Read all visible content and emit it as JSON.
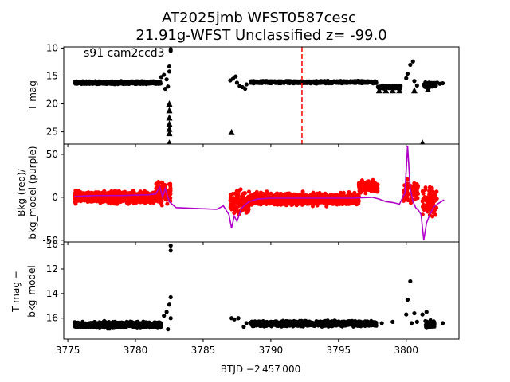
{
  "figure": {
    "title_line1": "AT2025jmb  WFST0587cesc",
    "title_line2": "21.91g-WFST Unclassified z= -99.0",
    "xlabel": "BTJD −2 457 000"
  },
  "chart_data": [
    {
      "type": "scatter",
      "panel": "top",
      "ylabel": "T mag",
      "annotation": "s91 cam2ccd3",
      "xlim": [
        3774.7,
        3803.9
      ],
      "ylim": [
        27.2,
        9.8
      ],
      "y_inverted": true,
      "xticks": [
        3775,
        3780,
        3785,
        3790,
        3795,
        3800
      ],
      "yticks": [
        10,
        15,
        20,
        25
      ],
      "dense_bands": [
        {
          "x_start": 3775.5,
          "x_end": 3781.9,
          "y_center": 16.2,
          "spread": 0.35,
          "count": 800
        },
        {
          "x_start": 3788.5,
          "x_end": 3797.8,
          "y_center": 16.1,
          "spread": 0.3,
          "count": 1100
        },
        {
          "x_start": 3797.9,
          "x_end": 3799.6,
          "y_center": 17.0,
          "spread": 0.4,
          "count": 160
        },
        {
          "x_start": 3801.3,
          "x_end": 3802.2,
          "y_center": 16.6,
          "spread": 0.6,
          "count": 90
        }
      ],
      "points": [
        {
          "x": 3781.9,
          "y": 15.2
        },
        {
          "x": 3782.1,
          "y": 14.8
        },
        {
          "x": 3782.2,
          "y": 17.3
        },
        {
          "x": 3782.3,
          "y": 15.6
        },
        {
          "x": 3782.4,
          "y": 16.9
        },
        {
          "x": 3782.5,
          "y": 14.2
        },
        {
          "x": 3782.6,
          "y": 10.2
        },
        {
          "x": 3782.6,
          "y": 10.5
        },
        {
          "x": 3782.5,
          "y": 13.3
        },
        {
          "x": 3787.0,
          "y": 15.8
        },
        {
          "x": 3787.2,
          "y": 15.5
        },
        {
          "x": 3787.4,
          "y": 15.1
        },
        {
          "x": 3787.5,
          "y": 16.2
        },
        {
          "x": 3787.7,
          "y": 16.8
        },
        {
          "x": 3787.9,
          "y": 17.0
        },
        {
          "x": 3788.1,
          "y": 17.3
        },
        {
          "x": 3788.2,
          "y": 16.5
        },
        {
          "x": 3800.0,
          "y": 15.4
        },
        {
          "x": 3800.1,
          "y": 14.6
        },
        {
          "x": 3800.3,
          "y": 13.0
        },
        {
          "x": 3800.5,
          "y": 12.4
        },
        {
          "x": 3800.6,
          "y": 15.9
        },
        {
          "x": 3800.8,
          "y": 16.7
        },
        {
          "x": 3802.3,
          "y": 16.2
        },
        {
          "x": 3802.5,
          "y": 16.4
        },
        {
          "x": 3802.7,
          "y": 16.3
        }
      ],
      "upper_limits": [
        {
          "x": 3782.5,
          "y": 20.0
        },
        {
          "x": 3782.5,
          "y": 21.2
        },
        {
          "x": 3782.5,
          "y": 22.5
        },
        {
          "x": 3782.5,
          "y": 23.6
        },
        {
          "x": 3782.5,
          "y": 24.5
        },
        {
          "x": 3782.5,
          "y": 25.3
        },
        {
          "x": 3782.5,
          "y": 27.0
        },
        {
          "x": 3787.1,
          "y": 25.1
        },
        {
          "x": 3801.2,
          "y": 27.0
        },
        {
          "x": 3798.0,
          "y": 17.6
        },
        {
          "x": 3798.5,
          "y": 17.6
        },
        {
          "x": 3799.0,
          "y": 17.6
        },
        {
          "x": 3799.5,
          "y": 17.6
        },
        {
          "x": 3800.6,
          "y": 17.6
        },
        {
          "x": 3801.6,
          "y": 17.4
        }
      ],
      "vline": {
        "x": 3792.3,
        "color": "#ff0000",
        "style": "dashed"
      },
      "color": "#000000"
    },
    {
      "type": "scatter",
      "panel": "middle",
      "ylabel_line1": "Bkg (red)/",
      "ylabel_line2": "bkg_model (purple)",
      "xlim": [
        3774.7,
        3803.9
      ],
      "ylim": [
        -52,
        62
      ],
      "xticks": [
        3775,
        3780,
        3785,
        3790,
        3795,
        3800
      ],
      "yticks": [
        -50,
        0,
        50
      ],
      "bkg_bands": [
        {
          "x_start": 3775.5,
          "x_end": 3781.5,
          "y_center": 0,
          "spread": 9,
          "count": 1000
        },
        {
          "x_start": 3788.5,
          "x_end": 3796.5,
          "y_center": -2,
          "spread": 9,
          "count": 1200
        },
        {
          "x_start": 3796.5,
          "x_end": 3797.9,
          "y_center": 12,
          "spread": 9,
          "count": 220
        },
        {
          "x_start": 3781.5,
          "x_end": 3782.6,
          "y_center": 5,
          "spread": 16,
          "count": 120
        },
        {
          "x_start": 3787.0,
          "x_end": 3788.4,
          "y_center": -5,
          "spread": 20,
          "count": 110
        },
        {
          "x_start": 3799.8,
          "x_end": 3800.9,
          "y_center": 5,
          "spread": 20,
          "count": 70
        },
        {
          "x_start": 3801.2,
          "x_end": 3802.3,
          "y_center": -5,
          "spread": 22,
          "count": 90
        }
      ],
      "bkg_model": {
        "x": [
          3775.5,
          3777.0,
          3779.0,
          3781.0,
          3781.5,
          3781.8,
          3782.0,
          3782.2,
          3782.5,
          3782.7,
          3783.0,
          3786.0,
          3786.5,
          3786.9,
          3787.1,
          3787.3,
          3787.5,
          3787.8,
          3788.0,
          3788.4,
          3789.0,
          3790.0,
          3792.0,
          3794.0,
          3796.0,
          3797.5,
          3798.0,
          3798.5,
          3799.0,
          3799.5,
          3799.9,
          3800.1,
          3800.3,
          3800.5,
          3800.7,
          3800.9,
          3801.1,
          3801.3,
          3801.5,
          3801.7,
          3802.0,
          3802.3,
          3802.8
        ],
        "y": [
          1,
          2,
          2,
          3,
          4,
          12,
          0,
          10,
          -5,
          -8,
          -12,
          -14,
          -10,
          -20,
          -36,
          -22,
          -28,
          -14,
          -10,
          -5,
          -2,
          -1,
          -1,
          -1,
          -1,
          0,
          -2,
          -5,
          -6,
          -8,
          5,
          60,
          10,
          -5,
          -12,
          -15,
          -20,
          -50,
          -30,
          -22,
          -12,
          -8,
          -3
        ],
        "color": "#b000c8"
      },
      "color": "#ff0000"
    },
    {
      "type": "scatter",
      "panel": "bottom",
      "ylabel_line1": "T mag −",
      "ylabel_line2": "bkg_model",
      "xlim": [
        3774.7,
        3803.9
      ],
      "ylim": [
        17.7,
        9.8
      ],
      "y_inverted": true,
      "xticks": [
        3775,
        3780,
        3785,
        3790,
        3795,
        3800
      ],
      "yticks": [
        10,
        12,
        14,
        16
      ],
      "dense_bands": [
        {
          "x_start": 3775.5,
          "x_end": 3781.9,
          "y_center": 16.55,
          "spread": 0.35,
          "count": 900
        },
        {
          "x_start": 3788.5,
          "x_end": 3797.8,
          "y_center": 16.45,
          "spread": 0.3,
          "count": 1100
        },
        {
          "x_start": 3801.4,
          "x_end": 3802.1,
          "y_center": 16.5,
          "spread": 0.45,
          "count": 70
        }
      ],
      "points": [
        {
          "x": 3782.6,
          "y": 10.1
        },
        {
          "x": 3782.6,
          "y": 10.5
        },
        {
          "x": 3782.6,
          "y": 14.3
        },
        {
          "x": 3782.5,
          "y": 14.9
        },
        {
          "x": 3782.3,
          "y": 15.5
        },
        {
          "x": 3782.1,
          "y": 15.8
        },
        {
          "x": 3782.4,
          "y": 16.9
        },
        {
          "x": 3782.6,
          "y": 16.0
        },
        {
          "x": 3787.1,
          "y": 16.0
        },
        {
          "x": 3787.3,
          "y": 16.1
        },
        {
          "x": 3787.6,
          "y": 16.0
        },
        {
          "x": 3788.0,
          "y": 16.7
        },
        {
          "x": 3788.2,
          "y": 16.4
        },
        {
          "x": 3798.2,
          "y": 16.4
        },
        {
          "x": 3799.0,
          "y": 16.3
        },
        {
          "x": 3800.0,
          "y": 15.7
        },
        {
          "x": 3800.1,
          "y": 14.5
        },
        {
          "x": 3800.3,
          "y": 13.0
        },
        {
          "x": 3800.4,
          "y": 16.4
        },
        {
          "x": 3800.6,
          "y": 15.6
        },
        {
          "x": 3800.8,
          "y": 16.3
        },
        {
          "x": 3801.2,
          "y": 15.7
        },
        {
          "x": 3801.5,
          "y": 15.5
        },
        {
          "x": 3802.7,
          "y": 16.4
        }
      ],
      "color": "#000000"
    }
  ]
}
